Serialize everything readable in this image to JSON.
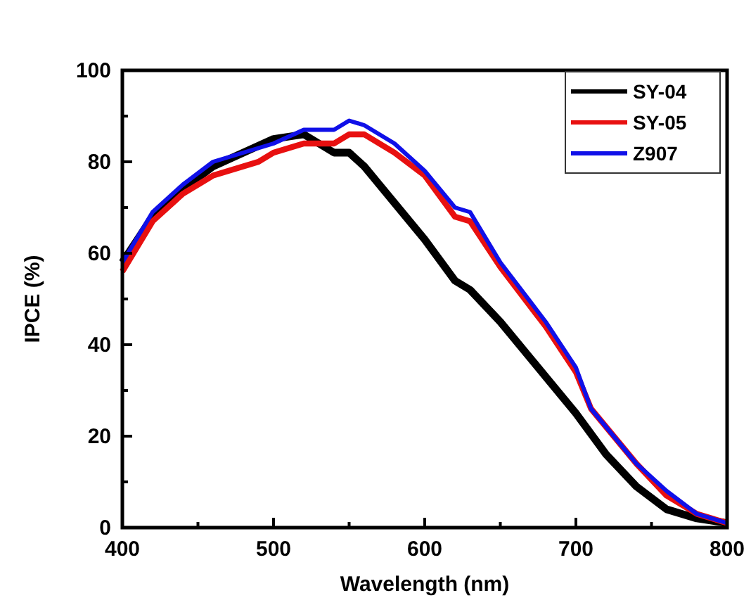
{
  "chart_data": {
    "type": "line",
    "xlabel": "Wavelength (nm)",
    "ylabel": "IPCE (%)",
    "xlim": [
      400,
      800
    ],
    "xticks": [
      400,
      {
        "value": 450,
        "label": null
      },
      500,
      {
        "value": 550,
        "label": null
      },
      600,
      {
        "value": 650,
        "label": null
      },
      700,
      {
        "value": 750,
        "label": null
      },
      800
    ],
    "ylim": [
      0,
      100
    ],
    "yticks": [
      0,
      {
        "value": 10,
        "label": null
      },
      20,
      {
        "value": 30,
        "label": null
      },
      40,
      {
        "value": 50,
        "label": null
      },
      60,
      {
        "value": 70,
        "label": null
      },
      80,
      {
        "value": 90,
        "label": null
      },
      100
    ],
    "legend": "top right",
    "grid": false,
    "marker": "none",
    "line_style": "solid",
    "series": [
      {
        "name": "SY-04",
        "color": "#000000",
        "x": [
          400,
          420,
          440,
          460,
          480,
          500,
          520,
          530,
          540,
          550,
          560,
          580,
          600,
          620,
          630,
          650,
          680,
          700,
          720,
          740,
          760,
          780,
          800
        ],
        "values": [
          58,
          68,
          74,
          79,
          82,
          85,
          86,
          84,
          82,
          82,
          79,
          71,
          63,
          54,
          52,
          45,
          33,
          25,
          16,
          9,
          4,
          2,
          1
        ]
      },
      {
        "name": "SY-05",
        "color": "#e81010",
        "x": [
          400,
          420,
          440,
          460,
          480,
          490,
          500,
          520,
          540,
          550,
          560,
          580,
          600,
          620,
          630,
          650,
          680,
          700,
          710,
          720,
          740,
          760,
          780,
          800
        ],
        "values": [
          56,
          67,
          73,
          77,
          79,
          80,
          82,
          84,
          84,
          86,
          86,
          82,
          77,
          68,
          67,
          57,
          44,
          34,
          26,
          22,
          14,
          7,
          3,
          1
        ]
      },
      {
        "name": "Z907",
        "color": "#1010e8",
        "x": [
          400,
          420,
          440,
          460,
          480,
          500,
          520,
          540,
          550,
          560,
          580,
          600,
          620,
          630,
          650,
          680,
          700,
          710,
          720,
          740,
          760,
          780,
          800
        ],
        "values": [
          58,
          69,
          75,
          80,
          82,
          84,
          87,
          87,
          89,
          88,
          84,
          78,
          70,
          69,
          58,
          45,
          35,
          26,
          22,
          14,
          8,
          3,
          1
        ]
      }
    ]
  }
}
